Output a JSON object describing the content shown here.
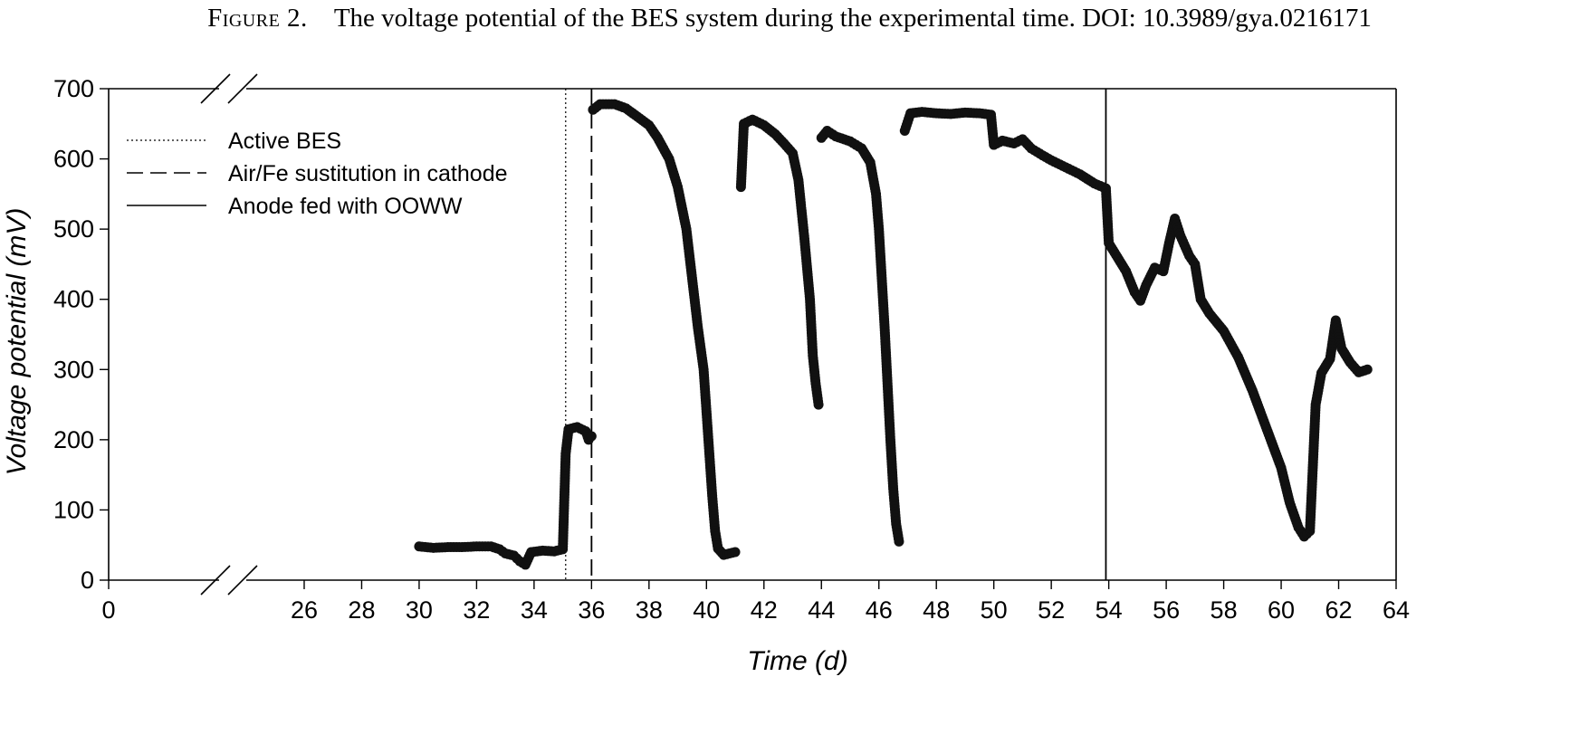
{
  "caption": {
    "figure_label": "Figure 2.",
    "text": "The voltage potential of the BES system during the experimental time. DOI: 10.3989/gya.0216171"
  },
  "chart_data": {
    "type": "scatter",
    "xlabel": "Time (d)",
    "ylabel": "Voltage potential (mV)",
    "xlim": [
      0,
      64
    ],
    "ylim": [
      0,
      700
    ],
    "x_axis_break": [
      0,
      24
    ],
    "x_ticks": [
      "0",
      "26",
      "28",
      "30",
      "32",
      "34",
      "36",
      "38",
      "40",
      "42",
      "44",
      "46",
      "48",
      "50",
      "52",
      "54",
      "56",
      "58",
      "60",
      "62",
      "64"
    ],
    "y_ticks": [
      "0",
      "100",
      "200",
      "300",
      "400",
      "500",
      "600",
      "700"
    ],
    "grid": false,
    "legend_position": "top-left",
    "legend": [
      {
        "label": "Active BES",
        "style": "dotted"
      },
      {
        "label": "Air/Fe sustitution in cathode",
        "style": "dashed"
      },
      {
        "label": "Anode fed with OOWW",
        "style": "solid"
      }
    ],
    "vertical_lines": [
      {
        "x": 35.1,
        "style": "dotted"
      },
      {
        "x": 36.0,
        "style": "dashed"
      },
      {
        "x": 53.9,
        "style": "solid"
      }
    ],
    "series_color": "#111111",
    "data": [
      [
        30.0,
        48
      ],
      [
        30.5,
        46
      ],
      [
        31.0,
        47
      ],
      [
        31.5,
        47
      ],
      [
        32.0,
        48
      ],
      [
        32.5,
        48
      ],
      [
        32.8,
        44
      ],
      [
        33.0,
        38
      ],
      [
        33.3,
        35
      ],
      [
        33.5,
        27
      ],
      [
        33.7,
        22
      ],
      [
        33.9,
        40
      ],
      [
        34.3,
        42
      ],
      [
        34.7,
        41
      ],
      [
        35.0,
        44
      ],
      [
        35.1,
        180
      ],
      [
        35.2,
        215
      ],
      [
        35.5,
        218
      ],
      [
        35.8,
        212
      ],
      [
        35.9,
        200
      ],
      [
        36.0,
        205
      ],
      [
        36.05,
        670
      ],
      [
        36.3,
        678
      ],
      [
        36.8,
        678
      ],
      [
        37.2,
        672
      ],
      [
        37.6,
        660
      ],
      [
        38.0,
        648
      ],
      [
        38.3,
        630
      ],
      [
        38.7,
        600
      ],
      [
        39.0,
        560
      ],
      [
        39.3,
        500
      ],
      [
        39.5,
        430
      ],
      [
        39.7,
        360
      ],
      [
        39.9,
        300
      ],
      [
        40.0,
        240
      ],
      [
        40.1,
        180
      ],
      [
        40.2,
        120
      ],
      [
        40.3,
        70
      ],
      [
        40.4,
        45
      ],
      [
        40.6,
        36
      ],
      [
        40.8,
        38
      ],
      [
        41.0,
        40
      ],
      [
        41.2,
        560
      ],
      [
        41.3,
        650
      ],
      [
        41.6,
        656
      ],
      [
        42.0,
        648
      ],
      [
        42.4,
        635
      ],
      [
        42.7,
        622
      ],
      [
        43.0,
        608
      ],
      [
        43.2,
        570
      ],
      [
        43.4,
        490
      ],
      [
        43.6,
        400
      ],
      [
        43.7,
        320
      ],
      [
        43.8,
        280
      ],
      [
        43.9,
        250
      ],
      [
        44.0,
        630
      ],
      [
        44.2,
        640
      ],
      [
        44.5,
        632
      ],
      [
        45.0,
        625
      ],
      [
        45.4,
        615
      ],
      [
        45.7,
        595
      ],
      [
        45.9,
        550
      ],
      [
        46.0,
        500
      ],
      [
        46.1,
        430
      ],
      [
        46.2,
        360
      ],
      [
        46.3,
        280
      ],
      [
        46.4,
        200
      ],
      [
        46.5,
        130
      ],
      [
        46.6,
        80
      ],
      [
        46.7,
        55
      ],
      [
        46.9,
        640
      ],
      [
        47.1,
        665
      ],
      [
        47.5,
        667
      ],
      [
        48.0,
        665
      ],
      [
        48.5,
        664
      ],
      [
        49.0,
        666
      ],
      [
        49.5,
        665
      ],
      [
        49.9,
        663
      ],
      [
        50.0,
        620
      ],
      [
        50.3,
        626
      ],
      [
        50.7,
        622
      ],
      [
        51.0,
        628
      ],
      [
        51.3,
        615
      ],
      [
        51.7,
        605
      ],
      [
        52.0,
        598
      ],
      [
        52.5,
        588
      ],
      [
        53.0,
        578
      ],
      [
        53.5,
        565
      ],
      [
        53.9,
        558
      ],
      [
        54.0,
        480
      ],
      [
        54.3,
        460
      ],
      [
        54.6,
        440
      ],
      [
        54.9,
        410
      ],
      [
        55.1,
        398
      ],
      [
        55.3,
        420
      ],
      [
        55.6,
        445
      ],
      [
        55.9,
        440
      ],
      [
        56.1,
        480
      ],
      [
        56.3,
        515
      ],
      [
        56.5,
        490
      ],
      [
        56.8,
        462
      ],
      [
        57.0,
        450
      ],
      [
        57.2,
        400
      ],
      [
        57.5,
        380
      ],
      [
        58.0,
        355
      ],
      [
        58.5,
        318
      ],
      [
        59.0,
        270
      ],
      [
        59.5,
        215
      ],
      [
        60.0,
        160
      ],
      [
        60.3,
        110
      ],
      [
        60.6,
        75
      ],
      [
        60.8,
        62
      ],
      [
        61.0,
        70
      ],
      [
        61.2,
        250
      ],
      [
        61.4,
        295
      ],
      [
        61.7,
        315
      ],
      [
        61.9,
        370
      ],
      [
        62.1,
        330
      ],
      [
        62.4,
        310
      ],
      [
        62.7,
        296
      ],
      [
        63.0,
        300
      ]
    ]
  }
}
